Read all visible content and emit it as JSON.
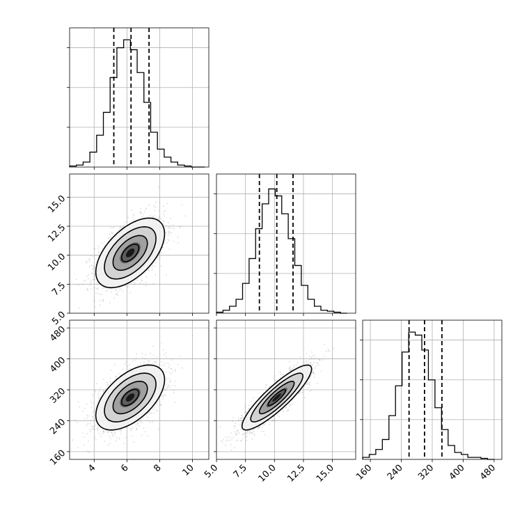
{
  "chart_data": {
    "type": "corner",
    "parameters": [
      {
        "range": [
          2.5,
          11.0
        ],
        "ticks": [
          4,
          6,
          8,
          10
        ],
        "tick_labels": [
          "4",
          "6",
          "8",
          "10"
        ],
        "quantiles": [
          5.2,
          6.25,
          7.35
        ],
        "center": 6.2,
        "std": 1.05
      },
      {
        "range": [
          5.0,
          17.0
        ],
        "ticks": [
          5.0,
          7.5,
          10.0,
          12.5,
          15.0
        ],
        "tick_labels": [
          "5.0",
          "7.5",
          "10.0",
          "12.5",
          "15.0"
        ],
        "quantiles": [
          8.7,
          10.2,
          11.6
        ],
        "center": 10.2,
        "std": 1.5
      },
      {
        "range": [
          140,
          500
        ],
        "ticks": [
          160,
          240,
          320,
          400,
          480
        ],
        "tick_labels": [
          "160",
          "240",
          "320",
          "400",
          "480"
        ],
        "quantiles": [
          260,
          300,
          345
        ],
        "center": 300,
        "std": 42
      }
    ],
    "histograms": [
      {
        "bins": [
          2.5,
          10.75
        ],
        "counts": [
          1,
          2,
          5,
          15,
          32,
          55,
          90,
          120,
          128,
          118,
          95,
          65,
          35,
          18,
          10,
          5,
          2,
          1,
          0,
          0
        ]
      },
      {
        "bins": [
          5.0,
          16.25
        ],
        "counts": [
          1,
          3,
          7,
          14,
          30,
          55,
          85,
          110,
          125,
          118,
          100,
          75,
          48,
          28,
          14,
          7,
          3,
          2,
          1,
          0
        ]
      },
      {
        "bins": [
          140,
          480
        ],
        "counts": [
          2,
          5,
          10,
          20,
          44,
          74,
          108,
          128,
          125,
          110,
          80,
          52,
          30,
          14,
          7,
          5,
          2,
          2,
          1,
          0
        ]
      }
    ],
    "hist_ylim": [
      0,
      140
    ],
    "pairs": [
      {
        "x_param": 0,
        "y_param": 1,
        "correlation": 0.55,
        "contour_levels": [
          0.5,
          1.0,
          1.5,
          2.0
        ]
      },
      {
        "x_param": 0,
        "y_param": 2,
        "correlation": 0.55,
        "contour_levels": [
          0.5,
          1.0,
          1.5,
          2.0
        ]
      },
      {
        "x_param": 1,
        "y_param": 2,
        "correlation": 0.88,
        "contour_levels": [
          0.5,
          1.0,
          1.5,
          2.0
        ]
      }
    ],
    "grid": true,
    "contour_color": "#000000",
    "sample_color": "#9a9a9a"
  }
}
